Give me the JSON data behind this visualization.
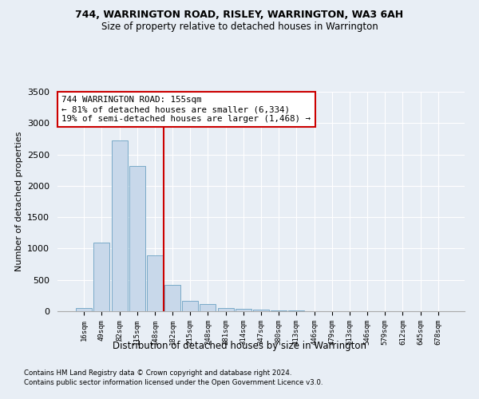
{
  "title": "744, WARRINGTON ROAD, RISLEY, WARRINGTON, WA3 6AH",
  "subtitle": "Size of property relative to detached houses in Warrington",
  "xlabel": "Distribution of detached houses by size in Warrington",
  "ylabel": "Number of detached properties",
  "bins": [
    "16sqm",
    "49sqm",
    "82sqm",
    "115sqm",
    "148sqm",
    "182sqm",
    "215sqm",
    "248sqm",
    "281sqm",
    "314sqm",
    "347sqm",
    "380sqm",
    "413sqm",
    "446sqm",
    "479sqm",
    "513sqm",
    "546sqm",
    "579sqm",
    "612sqm",
    "645sqm",
    "678sqm"
  ],
  "values": [
    50,
    1090,
    2720,
    2310,
    890,
    420,
    160,
    110,
    55,
    40,
    30,
    15,
    10,
    5,
    5,
    0,
    0,
    0,
    0,
    0,
    0
  ],
  "bar_color": "#c8d8ea",
  "bar_edge_color": "#7aaac8",
  "vline_color": "#cc0000",
  "vline_pos": 4.5,
  "annotation_line1": "744 WARRINGTON ROAD: 155sqm",
  "annotation_line2": "← 81% of detached houses are smaller (6,334)",
  "annotation_line3": "19% of semi-detached houses are larger (1,468) →",
  "annotation_box_color": "#ffffff",
  "annotation_box_edge": "#cc0000",
  "ylim": [
    0,
    3500
  ],
  "yticks": [
    0,
    500,
    1000,
    1500,
    2000,
    2500,
    3000,
    3500
  ],
  "bg_color": "#e8eef5",
  "axes_bg_color": "#e8eef5",
  "grid_color": "#ffffff",
  "title_fontsize": 9,
  "subtitle_fontsize": 8.5,
  "footer1": "Contains HM Land Registry data © Crown copyright and database right 2024.",
  "footer2": "Contains public sector information licensed under the Open Government Licence v3.0."
}
